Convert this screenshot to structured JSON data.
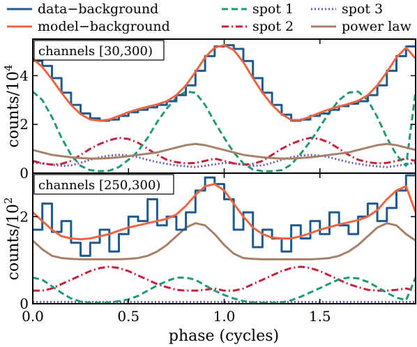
{
  "legend": [
    {
      "label": "data−background",
      "color": "#1f5a8f",
      "style": "step"
    },
    {
      "label": "spot 1",
      "color": "#1e9b76",
      "style": "dashed"
    },
    {
      "label": "spot 3",
      "color": "#6e5cb0",
      "style": "dotted"
    },
    {
      "label": "model−background",
      "color": "#f0653f",
      "style": "solid"
    },
    {
      "label": "spot 2",
      "color": "#c8203a",
      "style": "dashdot"
    },
    {
      "label": "power law",
      "color": "#a8806a",
      "style": "solid"
    }
  ],
  "x_axis": {
    "label": "phase (cycles)",
    "ticks": [
      {
        "v": 0.0,
        "label": "0.0"
      },
      {
        "v": 0.5,
        "label": "0.5"
      },
      {
        "v": 1.0,
        "label": "1.0"
      },
      {
        "v": 1.5,
        "label": "1.5"
      }
    ]
  },
  "panels": [
    {
      "label": "channels [30,300)",
      "ylabel": {
        "text": "counts/10",
        "sup": "4"
      },
      "yticks": [
        {
          "v": 0,
          "label": "0"
        },
        {
          "v": 2,
          "label": "2"
        },
        {
          "v": 4,
          "label": "4"
        }
      ]
    },
    {
      "label": "channels [250,300)",
      "ylabel": {
        "text": "counts/10",
        "sup": "2"
      },
      "yticks": [
        {
          "v": 0,
          "label": "0"
        },
        {
          "v": 2,
          "label": "2"
        }
      ]
    }
  ],
  "chart_data": [
    {
      "type": "line",
      "panel": "channels [30,300)",
      "xlim": [
        0,
        2
      ],
      "ylim": [
        0,
        5.5
      ],
      "x": [
        0.0,
        0.05,
        0.1,
        0.15,
        0.2,
        0.25,
        0.3,
        0.35,
        0.4,
        0.45,
        0.5,
        0.55,
        0.6,
        0.65,
        0.7,
        0.75,
        0.8,
        0.85,
        0.9,
        0.95,
        1.0,
        1.05,
        1.1,
        1.15,
        1.2,
        1.25,
        1.3,
        1.35,
        1.4,
        1.45,
        1.5,
        1.55,
        1.6,
        1.65,
        1.7,
        1.75,
        1.8,
        1.85,
        1.9,
        1.95
      ],
      "series": [
        {
          "name": "data−background",
          "values": [
            4.6,
            4.4,
            3.9,
            3.3,
            2.8,
            2.45,
            2.25,
            2.15,
            2.2,
            2.35,
            2.5,
            2.6,
            2.7,
            2.8,
            2.95,
            3.2,
            3.6,
            4.2,
            4.8,
            5.2,
            5.25,
            5.1,
            4.6,
            3.9,
            3.3,
            2.8,
            2.4,
            2.15,
            2.2,
            2.35,
            2.45,
            2.6,
            2.75,
            2.85,
            2.95,
            3.2,
            3.6,
            4.2,
            4.8,
            5.2
          ]
        },
        {
          "name": "model−background",
          "values": [
            4.7,
            4.35,
            3.85,
            3.3,
            2.8,
            2.42,
            2.2,
            2.15,
            2.2,
            2.35,
            2.5,
            2.62,
            2.72,
            2.82,
            2.95,
            3.2,
            3.6,
            4.15,
            4.75,
            5.15,
            5.25,
            5.05,
            4.55,
            3.9,
            3.3,
            2.8,
            2.42,
            2.18,
            2.18,
            2.32,
            2.48,
            2.62,
            2.74,
            2.84,
            2.97,
            3.2,
            3.6,
            4.15,
            4.75,
            5.15
          ]
        },
        {
          "name": "spot 1",
          "values": [
            3.35,
            3.0,
            2.3,
            1.45,
            0.75,
            0.3,
            0.12,
            0.08,
            0.1,
            0.25,
            0.55,
            0.9,
            1.45,
            2.1,
            2.65,
            3.1,
            3.35,
            3.3,
            2.8,
            2.1,
            1.45,
            0.85,
            0.4,
            0.15,
            0.08,
            0.08,
            0.12,
            0.35,
            0.8,
            1.3,
            1.9,
            2.5,
            3.0,
            3.3,
            3.35,
            3.0,
            2.3,
            1.45,
            0.75,
            0.3
          ]
        },
        {
          "name": "spot 2",
          "values": [
            0.5,
            0.4,
            0.35,
            0.38,
            0.5,
            0.75,
            1.0,
            1.2,
            1.35,
            1.45,
            1.4,
            1.25,
            1.0,
            0.75,
            0.55,
            0.45,
            0.4,
            0.42,
            0.5,
            0.6,
            0.5,
            0.4,
            0.35,
            0.38,
            0.5,
            0.75,
            1.0,
            1.2,
            1.35,
            1.45,
            1.4,
            1.25,
            1.0,
            0.75,
            0.55,
            0.45,
            0.4,
            0.42,
            0.5,
            0.6
          ]
        },
        {
          "name": "spot 3",
          "values": [
            0.42,
            0.4,
            0.35,
            0.3,
            0.32,
            0.42,
            0.55,
            0.65,
            0.72,
            0.75,
            0.72,
            0.65,
            0.55,
            0.45,
            0.38,
            0.32,
            0.28,
            0.25,
            0.3,
            0.36,
            0.42,
            0.4,
            0.35,
            0.3,
            0.32,
            0.42,
            0.55,
            0.65,
            0.72,
            0.75,
            0.72,
            0.65,
            0.55,
            0.45,
            0.38,
            0.32,
            0.28,
            0.25,
            0.3,
            0.36
          ]
        },
        {
          "name": "power law",
          "values": [
            0.95,
            0.85,
            0.75,
            0.7,
            0.65,
            0.62,
            0.6,
            0.6,
            0.62,
            0.65,
            0.7,
            0.75,
            0.8,
            0.85,
            0.95,
            1.05,
            1.15,
            1.2,
            1.15,
            1.05,
            0.95,
            0.85,
            0.75,
            0.7,
            0.65,
            0.62,
            0.6,
            0.6,
            0.62,
            0.65,
            0.7,
            0.75,
            0.8,
            0.85,
            0.95,
            1.05,
            1.15,
            1.2,
            1.15,
            1.05
          ]
        }
      ]
    },
    {
      "type": "line",
      "panel": "channels [250,300)",
      "xlim": [
        0,
        2
      ],
      "ylim": [
        0,
        3.0
      ],
      "x": [
        0.0,
        0.05,
        0.1,
        0.15,
        0.2,
        0.25,
        0.3,
        0.35,
        0.4,
        0.45,
        0.5,
        0.55,
        0.6,
        0.65,
        0.7,
        0.75,
        0.8,
        0.85,
        0.9,
        0.95,
        1.0,
        1.05,
        1.1,
        1.15,
        1.2,
        1.25,
        1.3,
        1.35,
        1.4,
        1.45,
        1.5,
        1.55,
        1.6,
        1.65,
        1.7,
        1.75,
        1.8,
        1.85,
        1.9,
        1.95
      ],
      "series": [
        {
          "name": "data−background",
          "values": [
            1.7,
            2.3,
            1.65,
            1.9,
            1.4,
            1.1,
            1.4,
            1.7,
            1.2,
            1.6,
            2.0,
            1.9,
            2.4,
            1.8,
            2.0,
            1.7,
            2.1,
            2.6,
            2.9,
            2.75,
            2.4,
            1.7,
            2.1,
            1.3,
            1.7,
            1.5,
            1.2,
            1.8,
            1.5,
            1.9,
            1.6,
            2.1,
            1.8,
            1.6,
            2.0,
            2.3,
            1.9,
            2.2,
            2.6,
            2.95
          ]
        },
        {
          "name": "model−background",
          "values": [
            2.1,
            1.9,
            1.7,
            1.55,
            1.5,
            1.48,
            1.5,
            1.55,
            1.6,
            1.68,
            1.75,
            1.8,
            1.85,
            1.9,
            1.95,
            2.05,
            2.25,
            2.5,
            2.7,
            2.75,
            2.6,
            2.3,
            2.0,
            1.75,
            1.6,
            1.52,
            1.5,
            1.5,
            1.55,
            1.62,
            1.7,
            1.76,
            1.82,
            1.87,
            1.92,
            2.0,
            2.15,
            2.4,
            2.6,
            2.7
          ]
        },
        {
          "name": "spot 1",
          "values": [
            0.6,
            0.55,
            0.4,
            0.25,
            0.12,
            0.05,
            0.02,
            0.02,
            0.03,
            0.06,
            0.1,
            0.18,
            0.3,
            0.42,
            0.52,
            0.6,
            0.6,
            0.55,
            0.42,
            0.3,
            0.2,
            0.12,
            0.06,
            0.03,
            0.02,
            0.02,
            0.03,
            0.08,
            0.16,
            0.26,
            0.36,
            0.46,
            0.56,
            0.6,
            0.58,
            0.5,
            0.38,
            0.25,
            0.14,
            0.08
          ]
        },
        {
          "name": "spot 2",
          "values": [
            0.3,
            0.3,
            0.35,
            0.45,
            0.55,
            0.65,
            0.75,
            0.82,
            0.85,
            0.82,
            0.75,
            0.65,
            0.55,
            0.45,
            0.38,
            0.32,
            0.3,
            0.3,
            0.32,
            0.35,
            0.3,
            0.3,
            0.35,
            0.45,
            0.55,
            0.65,
            0.75,
            0.82,
            0.85,
            0.82,
            0.75,
            0.65,
            0.55,
            0.45,
            0.38,
            0.32,
            0.3,
            0.3,
            0.32,
            0.35
          ]
        },
        {
          "name": "spot 3",
          "values": [
            0.04,
            0.04,
            0.04,
            0.04,
            0.04,
            0.04,
            0.04,
            0.04,
            0.04,
            0.04,
            0.04,
            0.04,
            0.04,
            0.04,
            0.04,
            0.04,
            0.04,
            0.04,
            0.04,
            0.04,
            0.04,
            0.04,
            0.04,
            0.04,
            0.04,
            0.04,
            0.04,
            0.04,
            0.04,
            0.04,
            0.04,
            0.04,
            0.04,
            0.04,
            0.04,
            0.04,
            0.04,
            0.04,
            0.04,
            0.04
          ]
        },
        {
          "name": "power law",
          "values": [
            1.45,
            1.25,
            1.1,
            1.05,
            1.03,
            1.02,
            1.02,
            1.02,
            1.02,
            1.02,
            1.03,
            1.05,
            1.1,
            1.2,
            1.35,
            1.55,
            1.75,
            1.85,
            1.8,
            1.6,
            1.35,
            1.15,
            1.05,
            1.03,
            1.02,
            1.02,
            1.02,
            1.02,
            1.02,
            1.02,
            1.03,
            1.05,
            1.1,
            1.2,
            1.35,
            1.55,
            1.75,
            1.85,
            1.8,
            1.6
          ]
        }
      ]
    }
  ]
}
